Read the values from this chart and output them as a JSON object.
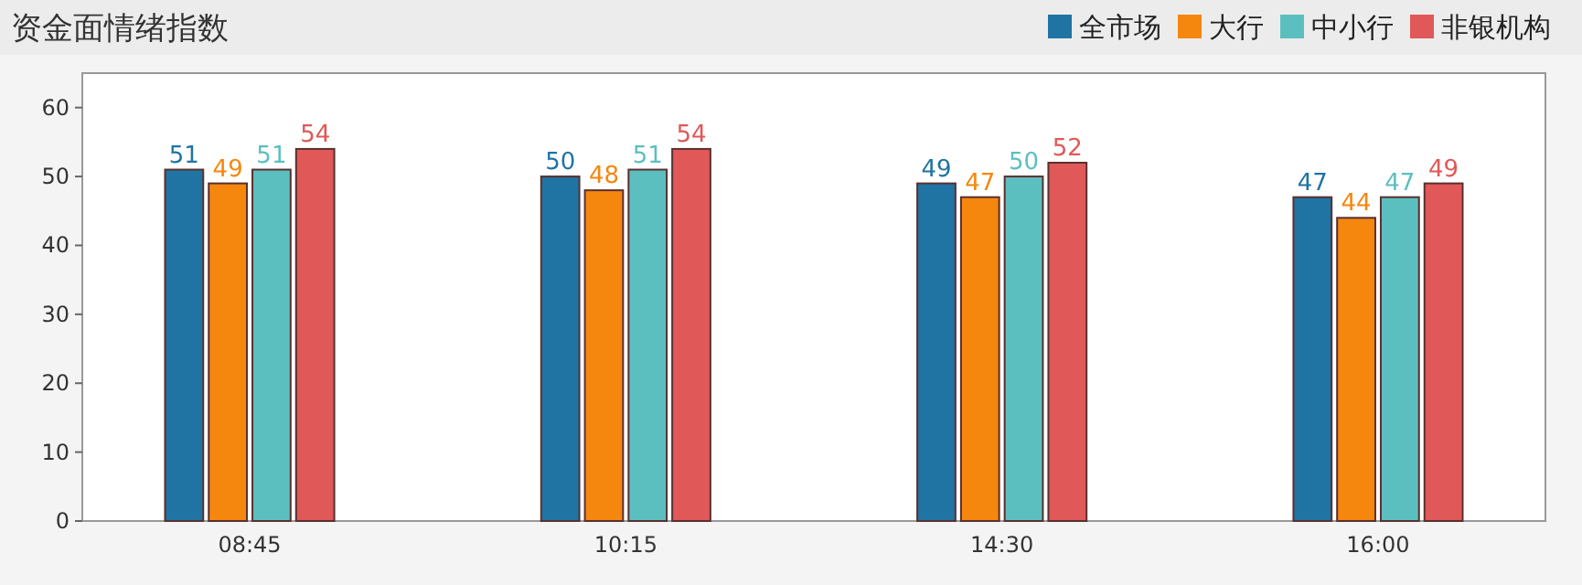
{
  "chart_data": {
    "type": "bar",
    "title": "资金面情绪指数",
    "categories": [
      "08:45",
      "10:15",
      "14:30",
      "16:00"
    ],
    "series": [
      {
        "name": "全市场",
        "color": "#1f74a3",
        "values": [
          51,
          50,
          49,
          47
        ]
      },
      {
        "name": "大行",
        "color": "#f5870f",
        "values": [
          49,
          48,
          47,
          44
        ]
      },
      {
        "name": "中小行",
        "color": "#5cbfbf",
        "values": [
          51,
          51,
          50,
          47
        ]
      },
      {
        "name": "非银机构",
        "color": "#e05858",
        "values": [
          54,
          54,
          52,
          49
        ]
      }
    ],
    "ylim": [
      0,
      65
    ],
    "yticks": [
      0,
      10,
      20,
      30,
      40,
      50,
      60
    ],
    "grid": false,
    "legend": "top right",
    "data_labels": true
  }
}
